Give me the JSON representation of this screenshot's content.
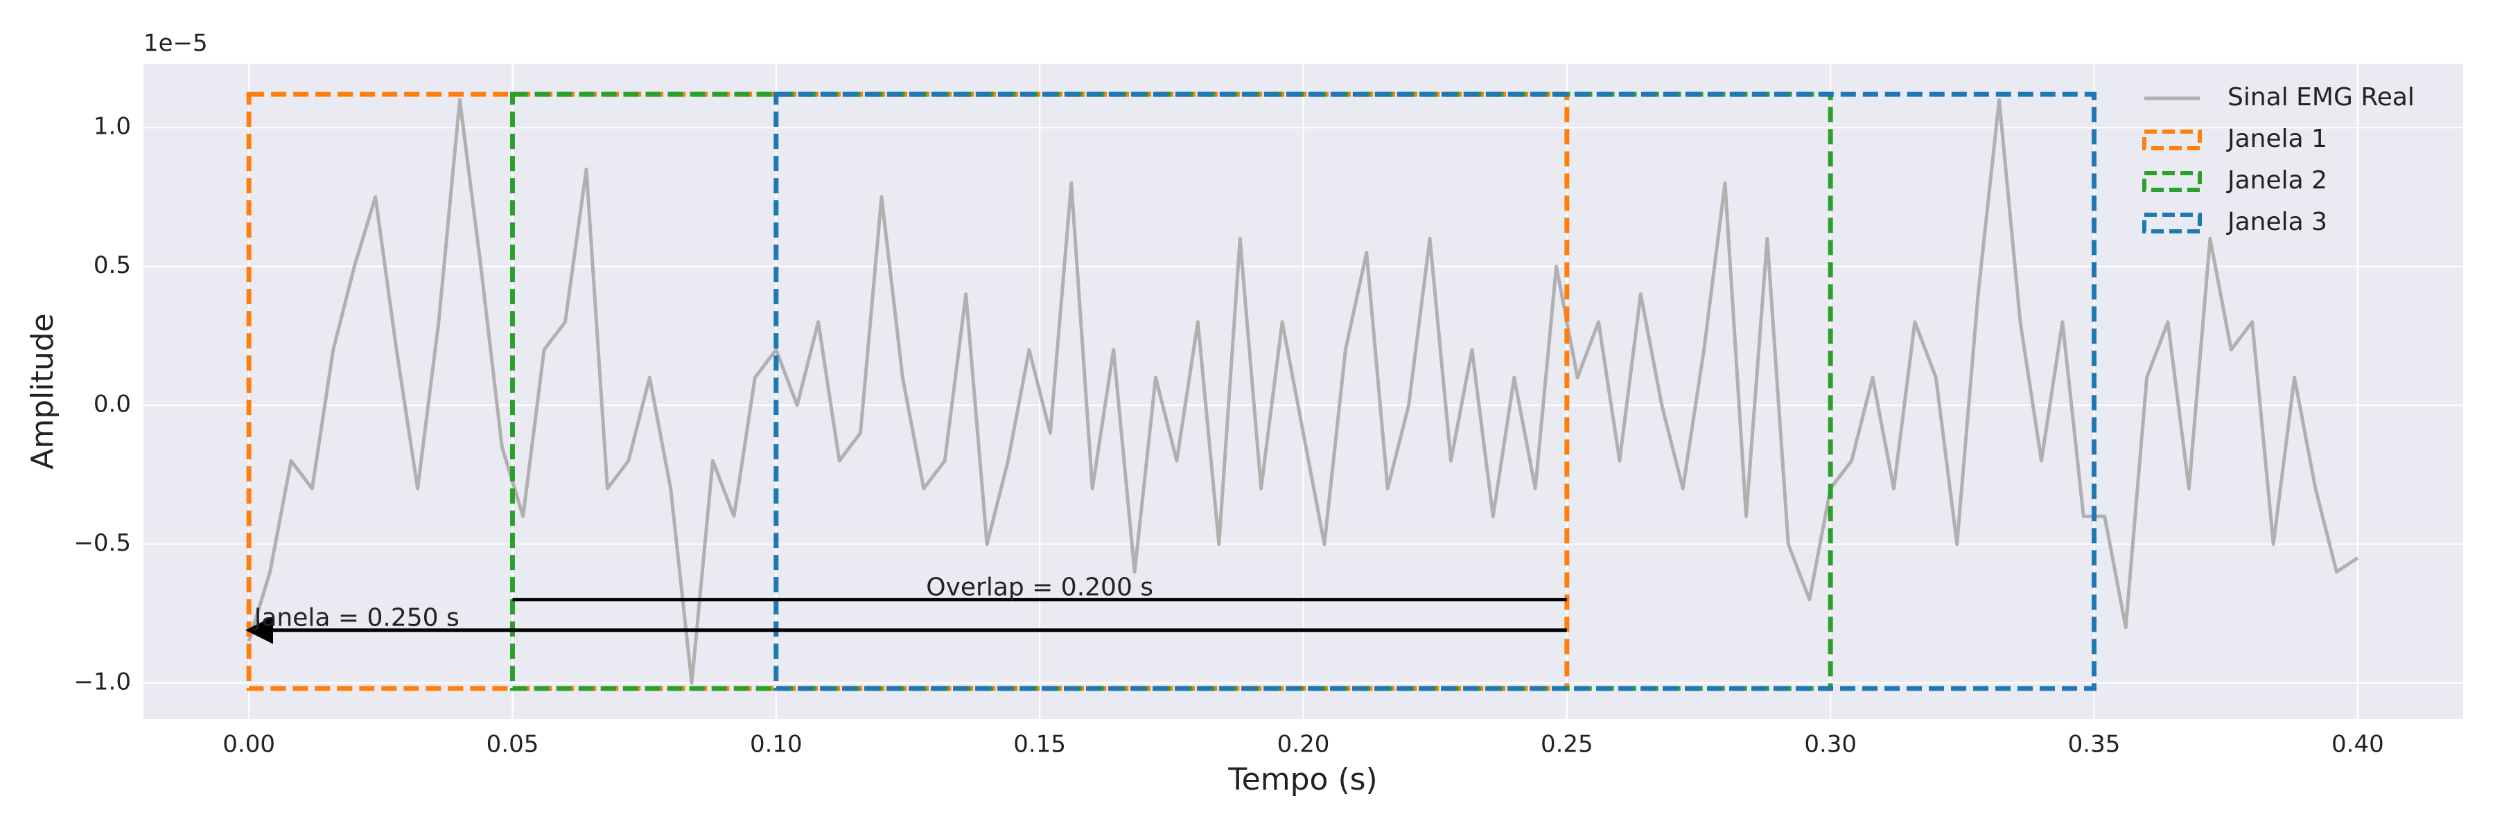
{
  "chart_data": {
    "type": "line",
    "x_label": "Tempo (s)",
    "y_label": "Amplitude",
    "y_offset_text": "1e−5",
    "x": [
      0,
      0.004,
      0.008,
      0.012,
      0.016,
      0.02,
      0.024,
      0.028,
      0.032,
      0.036,
      0.04,
      0.044,
      0.048,
      0.052,
      0.056,
      0.06,
      0.064,
      0.068,
      0.072,
      0.076,
      0.08,
      0.084,
      0.088,
      0.092,
      0.096,
      0.1,
      0.104,
      0.108,
      0.112,
      0.116,
      0.12,
      0.124,
      0.128,
      0.132,
      0.136,
      0.14,
      0.144,
      0.148,
      0.152,
      0.156,
      0.16,
      0.164,
      0.168,
      0.172,
      0.176,
      0.18,
      0.184,
      0.188,
      0.192,
      0.196,
      0.2,
      0.204,
      0.208,
      0.212,
      0.216,
      0.22,
      0.224,
      0.228,
      0.232,
      0.236,
      0.24,
      0.244,
      0.248,
      0.252,
      0.256,
      0.26,
      0.264,
      0.268,
      0.272,
      0.276,
      0.28,
      0.284,
      0.288,
      0.292,
      0.296,
      0.3,
      0.304,
      0.308,
      0.312,
      0.316,
      0.32,
      0.324,
      0.328,
      0.332,
      0.336,
      0.34,
      0.344,
      0.348,
      0.352,
      0.356,
      0.36,
      0.364,
      0.368,
      0.372,
      0.376,
      0.38,
      0.384,
      0.388,
      0.392,
      0.396,
      0.4
    ],
    "series": [
      {
        "name": "Sinal EMG Real",
        "color": "#b0b0b0",
        "values": [
          -0.85,
          -0.6,
          -0.2,
          -0.3,
          0.2,
          0.5,
          0.75,
          0.2,
          -0.3,
          0.3,
          1.1,
          0.5,
          -0.15,
          -0.4,
          0.2,
          0.3,
          0.85,
          -0.3,
          -0.2,
          0.1,
          -0.3,
          -1.0,
          -0.2,
          -0.4,
          0.1,
          0.2,
          0.0,
          0.3,
          -0.2,
          -0.1,
          0.75,
          0.1,
          -0.3,
          -0.2,
          0.4,
          -0.5,
          -0.2,
          0.2,
          -0.1,
          0.8,
          -0.3,
          0.2,
          -0.6,
          0.1,
          -0.2,
          0.3,
          -0.5,
          0.6,
          -0.3,
          0.3,
          -0.1,
          -0.5,
          0.2,
          0.55,
          -0.3,
          0.0,
          0.6,
          -0.2,
          0.2,
          -0.4,
          0.1,
          -0.3,
          0.5,
          0.1,
          0.3,
          -0.2,
          0.4,
          0.0,
          -0.3,
          0.2,
          0.8,
          -0.4,
          0.6,
          -0.5,
          -0.7,
          -0.3,
          -0.2,
          0.1,
          -0.3,
          0.3,
          0.1,
          -0.5,
          0.4,
          1.1,
          0.3,
          -0.2,
          0.3,
          -0.4,
          -0.4,
          -0.8,
          0.1,
          0.3,
          -0.3,
          0.6,
          0.2,
          0.3,
          -0.5,
          0.1,
          -0.3,
          -0.6,
          -0.55
        ]
      }
    ],
    "windows": [
      {
        "name": "Janela 1",
        "color": "#ff7f0e",
        "start": 0,
        "end": 0.25
      },
      {
        "name": "Janela 2",
        "color": "#2ca02c",
        "start": 0.05,
        "end": 0.3
      },
      {
        "name": "Janela 3",
        "color": "#1f77b4",
        "start": 0.1,
        "end": 0.35
      }
    ],
    "window_ylim": [
      -1.02,
      1.12
    ],
    "annotations": [
      {
        "text": "Janela = 0.250 s",
        "x": 0.001,
        "y": -0.77,
        "x_start": 0.25,
        "x_end": 0,
        "y_line": -0.81,
        "arrow": true
      },
      {
        "text": "Overlap = 0.200 s",
        "x": 0.15,
        "y": -0.66,
        "x_start": 0.05,
        "x_end": 0.25,
        "y_line": -0.7,
        "arrow": false
      }
    ],
    "xlim": [
      -0.02,
      0.42
    ],
    "ylim": [
      -1.13,
      1.23
    ],
    "xticks": [
      {
        "value": 0,
        "label": "0.00"
      },
      {
        "value": 0.05,
        "label": "0.05"
      },
      {
        "value": 0.1,
        "label": "0.10"
      },
      {
        "value": 0.15,
        "label": "0.15"
      },
      {
        "value": 0.2,
        "label": "0.20"
      },
      {
        "value": 0.25,
        "label": "0.25"
      },
      {
        "value": 0.3,
        "label": "0.30"
      },
      {
        "value": 0.35,
        "label": "0.35"
      },
      {
        "value": 0.4,
        "label": "0.40"
      }
    ],
    "yticks": [
      {
        "value": -1,
        "label": "−1.0"
      },
      {
        "value": -0.5,
        "label": "−0.5"
      },
      {
        "value": 0,
        "label": "0.0"
      },
      0.5,
      {
        "value": 1,
        "label": "1.0"
      }
    ],
    "grid": true,
    "legend": "upper right"
  }
}
